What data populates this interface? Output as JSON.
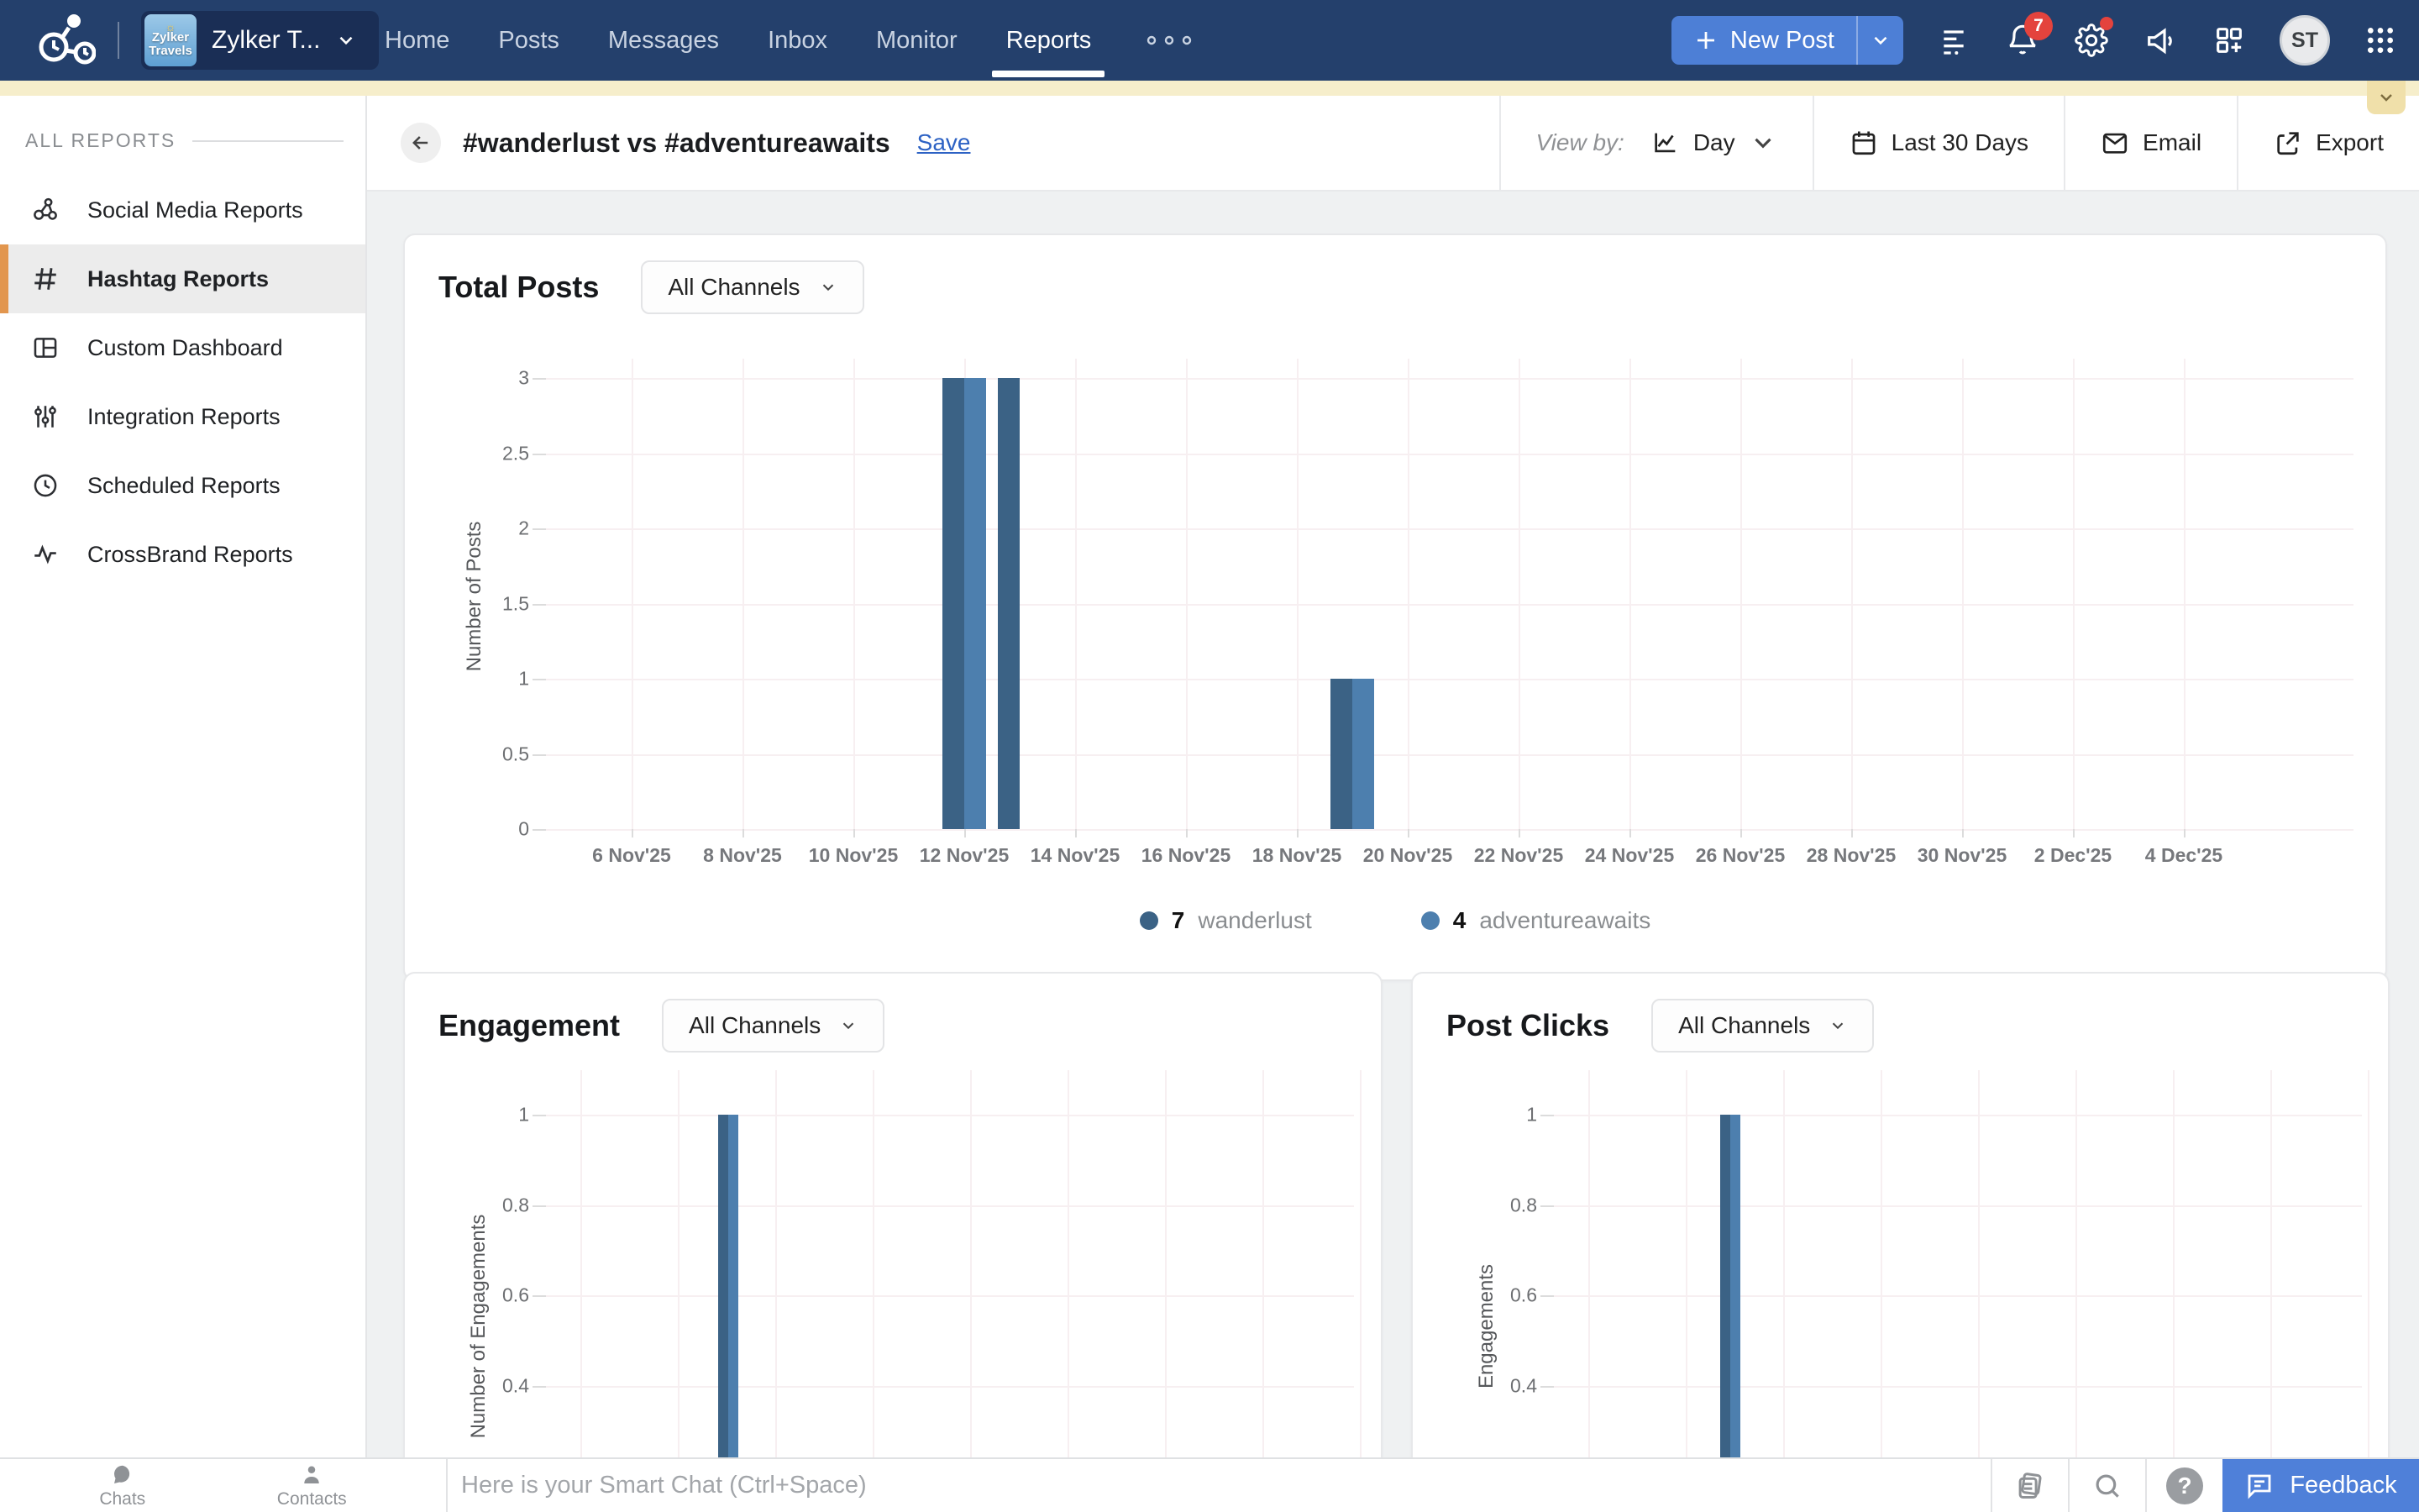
{
  "navbar": {
    "brand_label": "Zylker T...",
    "brand_logo_line1": "Zylker",
    "brand_logo_line2": "Travels",
    "items": [
      {
        "label": "Home"
      },
      {
        "label": "Posts"
      },
      {
        "label": "Messages"
      },
      {
        "label": "Inbox"
      },
      {
        "label": "Monitor"
      },
      {
        "label": "Reports",
        "active": true
      }
    ],
    "new_post_label": "New Post",
    "notification_count": "7",
    "avatar_initials": "ST"
  },
  "sidebar": {
    "section_title": "ALL REPORTS",
    "items": [
      {
        "label": "Social Media Reports",
        "icon": "social-network-icon"
      },
      {
        "label": "Hashtag Reports",
        "icon": "hashtag-icon",
        "active": true
      },
      {
        "label": "Custom Dashboard",
        "icon": "dashboard-icon"
      },
      {
        "label": "Integration Reports",
        "icon": "sliders-icon"
      },
      {
        "label": "Scheduled Reports",
        "icon": "clock-icon"
      },
      {
        "label": "CrossBrand Reports",
        "icon": "pulse-icon"
      }
    ]
  },
  "report_header": {
    "title": "#wanderlust vs #adventureawaits",
    "save_label": "Save",
    "view_by_label": "View by:",
    "view_by_value": "Day",
    "date_range_label": "Last 30 Days",
    "email_label": "Email",
    "export_label": "Export"
  },
  "chart_data": [
    {
      "id": "total_posts",
      "type": "bar",
      "title": "Total Posts",
      "channel_filter": "All Channels",
      "ylabel": "Number of Posts",
      "ylim": [
        0,
        3
      ],
      "ytick_labels": [
        "0",
        "0.5",
        "1",
        "1.5",
        "2",
        "2.5",
        "3"
      ],
      "x_range": {
        "start": "5 Nov'25",
        "end": "4 Dec'25",
        "days": 30
      },
      "xtick_labels": [
        "6 Nov'25",
        "8 Nov'25",
        "10 Nov'25",
        "12 Nov'25",
        "14 Nov'25",
        "16 Nov'25",
        "18 Nov'25",
        "20 Nov'25",
        "22 Nov'25",
        "24 Nov'25",
        "26 Nov'25",
        "28 Nov'25",
        "30 Nov'25",
        "2 Dec'25",
        "4 Dec'25"
      ],
      "series": [
        {
          "name": "wanderlust",
          "color": "#3b6285",
          "total": 7,
          "points": [
            {
              "date": "12 Nov'25",
              "day_index": 7,
              "value": 3
            },
            {
              "date": "13 Nov'25",
              "day_index": 8,
              "value": 3
            },
            {
              "date": "19 Nov'25",
              "day_index": 14,
              "value": 1
            }
          ]
        },
        {
          "name": "adventureawaits",
          "color": "#4d7fae",
          "total": 4,
          "points": [
            {
              "date": "12 Nov'25",
              "day_index": 7,
              "value": 3
            },
            {
              "date": "19 Nov'25",
              "day_index": 14,
              "value": 1
            }
          ]
        }
      ],
      "legend": [
        {
          "value": "7",
          "label": "wanderlust",
          "color": "#3b6285"
        },
        {
          "value": "4",
          "label": "adventureawaits",
          "color": "#4d7fae"
        }
      ]
    },
    {
      "id": "engagement",
      "type": "bar",
      "title": "Engagement",
      "channel_filter": "All Channels",
      "ylabel": "Number of Engagements",
      "visible_ytick_labels": [
        "1",
        "0.8",
        "0.6",
        "0.4"
      ],
      "series": [
        {
          "name": "wanderlust",
          "color": "#3b6285",
          "points": [
            {
              "value": 1
            }
          ]
        },
        {
          "name": "adventureawaits",
          "color": "#4d7fae",
          "points": [
            {
              "value": 1
            }
          ]
        }
      ]
    },
    {
      "id": "post_clicks",
      "type": "bar",
      "title": "Post Clicks",
      "channel_filter": "All Channels",
      "ylabel": "Engagements",
      "visible_ytick_labels": [
        "1",
        "0.8",
        "0.6",
        "0.4"
      ],
      "series": [
        {
          "name": "wanderlust",
          "color": "#3b6285",
          "points": [
            {
              "value": 1
            }
          ]
        },
        {
          "name": "adventureawaits",
          "color": "#4d7fae",
          "points": [
            {
              "value": 1
            }
          ]
        }
      ]
    }
  ],
  "bottom_bar": {
    "chats_label": "Chats",
    "contacts_label": "Contacts",
    "chat_placeholder": "Here is your Smart Chat (Ctrl+Space)",
    "feedback_label": "Feedback"
  },
  "colors": {
    "navbar": "#24406c",
    "accent_blue": "#4d7fd6",
    "series_dark": "#3b6285",
    "series_light": "#4d7fae",
    "sidebar_active_accent": "#e2964e",
    "banner_yellow": "#f6eecb",
    "badge_red": "#e4433d",
    "link_blue": "#2d62c4"
  }
}
